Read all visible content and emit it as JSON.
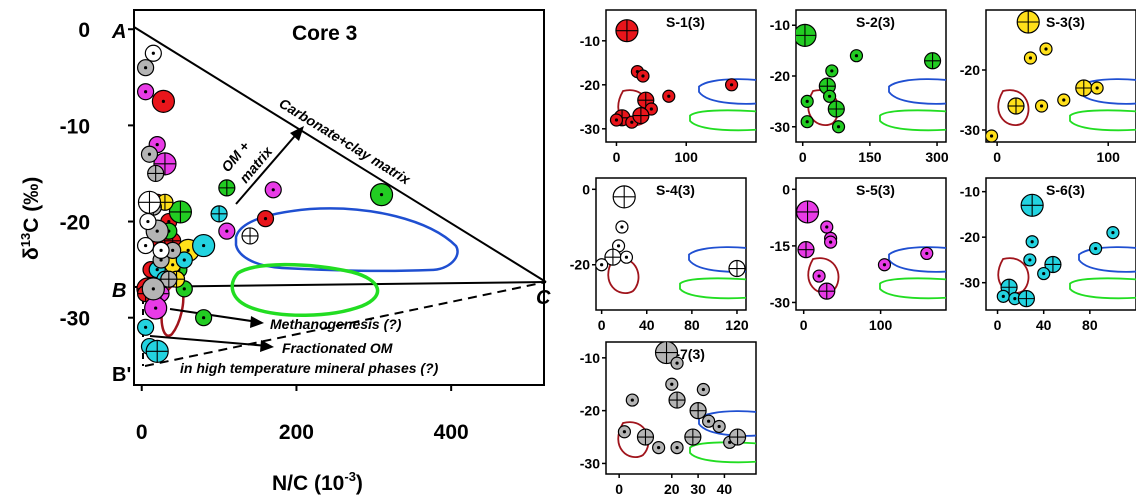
{
  "colors": {
    "red": "#e8151b",
    "green": "#22cc22",
    "yellow": "#ffe01a",
    "magenta": "#e83be6",
    "cyan": "#23d3e0",
    "gray": "#b4b4b4",
    "white": "#ffffff",
    "blue_field": "#1f4fd1",
    "green_field": "#22dd22",
    "brown_field": "#a0141c"
  },
  "main": {
    "title": "Core 3",
    "y_label_main": "δ",
    "y_label_sup": "13",
    "y_label_rest": "C (‰)",
    "x_label_main": "N/C (10",
    "x_label_sup": "-3",
    "x_label_rest": ")",
    "point_A": "A",
    "point_B": "B",
    "point_Bp": "B'",
    "point_C": "C",
    "label_carbonate": "Carbonate+clay matrix",
    "label_om_1": "OM +",
    "label_om_2": "matrix",
    "label_methanogenesis": "Methanogenesis (?)",
    "label_fractionated_1": "Fractionated OM",
    "label_fractionated_2": "in high temperature mineral phases (?)"
  },
  "chart_data": [
    {
      "type": "scatter",
      "title": "Core 3",
      "xlim": [
        -10,
        520
      ],
      "ylim": [
        -37,
        2
      ],
      "xticks": [
        0,
        200,
        400
      ],
      "yticks": [
        0,
        -10,
        -20,
        -30
      ],
      "annotations": [
        "A",
        "B",
        "B'",
        "C",
        "Carbonate+clay matrix",
        "OM + matrix",
        "Methanogenesis (?)",
        "Fractionated OM",
        "in high temperature mineral phases (?)"
      ],
      "series": [
        {
          "color": "red",
          "points": [
            [
              8,
              -27
            ],
            [
              12,
              -25
            ],
            [
              20,
              -18
            ],
            [
              22,
              -27
            ],
            [
              25,
              -22
            ],
            [
              35,
              -20
            ],
            [
              40,
              -22
            ],
            [
              160,
              -19.7
            ],
            [
              28,
              -7.5
            ],
            [
              5,
              -27.5
            ]
          ]
        },
        {
          "color": "green",
          "points": [
            [
              35,
              -21
            ],
            [
              42,
              -24
            ],
            [
              50,
              -19
            ],
            [
              55,
              -27
            ],
            [
              80,
              -30
            ],
            [
              110,
              -16.5
            ],
            [
              310,
              -17.2
            ],
            [
              48,
              -25
            ]
          ]
        },
        {
          "color": "yellow",
          "points": [
            [
              30,
              -18
            ],
            [
              40,
              -24.5
            ],
            [
              60,
              -23
            ],
            [
              45,
              -26
            ]
          ]
        },
        {
          "color": "magenta",
          "points": [
            [
              5,
              -6.5
            ],
            [
              20,
              -12
            ],
            [
              30,
              -14
            ],
            [
              170,
              -16.7
            ],
            [
              110,
              -21
            ],
            [
              25,
              -27.5
            ],
            [
              18,
              -29
            ]
          ]
        },
        {
          "color": "cyan",
          "points": [
            [
              20,
              -25
            ],
            [
              30,
              -26
            ],
            [
              55,
              -24
            ],
            [
              80,
              -22.5
            ],
            [
              100,
              -19.2
            ],
            [
              5,
              -31
            ],
            [
              10,
              -33
            ],
            [
              20,
              -33.5
            ]
          ]
        },
        {
          "color": "gray",
          "points": [
            [
              5,
              -4
            ],
            [
              10,
              -13
            ],
            [
              15,
              -18.5
            ],
            [
              20,
              -21
            ],
            [
              25,
              -24
            ],
            [
              35,
              -26
            ],
            [
              40,
              -23
            ],
            [
              15,
              -27
            ],
            [
              18,
              -15
            ]
          ]
        },
        {
          "color": "white",
          "points": [
            [
              15,
              -2.5
            ],
            [
              8,
              -20
            ],
            [
              10,
              -18
            ],
            [
              5,
              -22.5
            ],
            [
              25,
              -23
            ],
            [
              140,
              -21.5
            ]
          ]
        }
      ]
    },
    {
      "type": "scatter",
      "title": "S-1(3)",
      "xlim": [
        -15,
        200
      ],
      "ylim": [
        -33,
        -3
      ],
      "xticks": [
        0,
        100
      ],
      "yticks": [
        -10,
        -20,
        -30
      ],
      "series": [
        {
          "color": "red",
          "points": [
            [
              15,
              -7.7
            ],
            [
              30,
              -17
            ],
            [
              38,
              -18
            ],
            [
              42,
              -23.5
            ],
            [
              50,
              -25.5
            ],
            [
              75,
              -22.6
            ],
            [
              8,
              -27.5
            ],
            [
              0,
              -28
            ],
            [
              22,
              -28.5
            ],
            [
              35,
              -27
            ],
            [
              165,
              -20
            ]
          ]
        }
      ]
    },
    {
      "type": "scatter",
      "title": "S-2(3)",
      "xlim": [
        -15,
        320
      ],
      "ylim": [
        -33,
        -7
      ],
      "xticks": [
        0,
        150,
        300
      ],
      "yticks": [
        -10,
        -20,
        -30
      ],
      "series": [
        {
          "color": "green",
          "points": [
            [
              5,
              -12
            ],
            [
              65,
              -19
            ],
            [
              120,
              -16
            ],
            [
              55,
              -22
            ],
            [
              60,
              -24
            ],
            [
              10,
              -25
            ],
            [
              75,
              -26.5
            ],
            [
              10,
              -29
            ],
            [
              80,
              -30
            ],
            [
              290,
              -17
            ]
          ]
        }
      ]
    },
    {
      "type": "scatter",
      "title": "S-3(3)",
      "xlim": [
        -10,
        125
      ],
      "ylim": [
        -32,
        -10
      ],
      "xticks": [
        0,
        100
      ],
      "yticks": [
        -20,
        -30
      ],
      "series": [
        {
          "color": "yellow",
          "points": [
            [
              28,
              -12
            ],
            [
              30,
              -18
            ],
            [
              44,
              -16.5
            ],
            [
              17,
              -26
            ],
            [
              40,
              -26
            ],
            [
              60,
              -25
            ],
            [
              78,
              -23
            ],
            [
              90,
              -23
            ],
            [
              -5,
              -31
            ]
          ]
        }
      ]
    },
    {
      "type": "scatter",
      "title": "S-4(3)",
      "xlim": [
        -5,
        128
      ],
      "ylim": [
        -32,
        3
      ],
      "xticks": [
        0,
        40,
        80,
        120
      ],
      "yticks": [
        0,
        -20
      ],
      "series": [
        {
          "color": "white",
          "points": [
            [
              20,
              -2
            ],
            [
              18,
              -10
            ],
            [
              15,
              -15
            ],
            [
              10,
              -18
            ],
            [
              22,
              -18
            ],
            [
              0,
              -20
            ],
            [
              120,
              -21
            ]
          ]
        }
      ]
    },
    {
      "type": "scatter",
      "title": "S-5(3)",
      "xlim": [
        -10,
        185
      ],
      "ylim": [
        -32,
        3
      ],
      "xticks": [
        0,
        100
      ],
      "yticks": [
        0,
        -15,
        -30
      ],
      "series": [
        {
          "color": "magenta",
          "points": [
            [
              5,
              -6
            ],
            [
              30,
              -10
            ],
            [
              35,
              -13
            ],
            [
              3,
              -16
            ],
            [
              35,
              -14
            ],
            [
              20,
              -23
            ],
            [
              30,
              -27
            ],
            [
              105,
              -20
            ],
            [
              160,
              -17
            ]
          ]
        }
      ]
    },
    {
      "type": "scatter",
      "title": "S-6(3)",
      "xlim": [
        -10,
        120
      ],
      "ylim": [
        -36,
        -7
      ],
      "xticks": [
        0,
        40,
        80
      ],
      "yticks": [
        -10,
        -20,
        -30
      ],
      "series": [
        {
          "color": "cyan",
          "points": [
            [
              30,
              -13
            ],
            [
              30,
              -21
            ],
            [
              28,
              -25
            ],
            [
              48,
              -26
            ],
            [
              85,
              -22.5
            ],
            [
              100,
              -19
            ],
            [
              10,
              -31
            ],
            [
              5,
              -33
            ],
            [
              15,
              -33.5
            ],
            [
              25,
              -33.5
            ],
            [
              40,
              -28
            ]
          ]
        }
      ]
    },
    {
      "type": "scatter",
      "title": "S-7(3)",
      "xlim": [
        -5,
        52
      ],
      "ylim": [
        -32,
        -7
      ],
      "xticks": [
        0,
        20,
        30,
        40
      ],
      "yticks": [
        -10,
        -20,
        -30
      ],
      "series": [
        {
          "color": "gray",
          "points": [
            [
              18,
              -9
            ],
            [
              22,
              -11
            ],
            [
              20,
              -15
            ],
            [
              22,
              -18
            ],
            [
              5,
              -18
            ],
            [
              32,
              -16
            ],
            [
              30,
              -20
            ],
            [
              34,
              -22
            ],
            [
              2,
              -24
            ],
            [
              10,
              -25
            ],
            [
              15,
              -27
            ],
            [
              22,
              -27
            ],
            [
              28,
              -25
            ],
            [
              38,
              -23
            ],
            [
              42,
              -26
            ],
            [
              45,
              -25
            ]
          ]
        }
      ]
    }
  ]
}
